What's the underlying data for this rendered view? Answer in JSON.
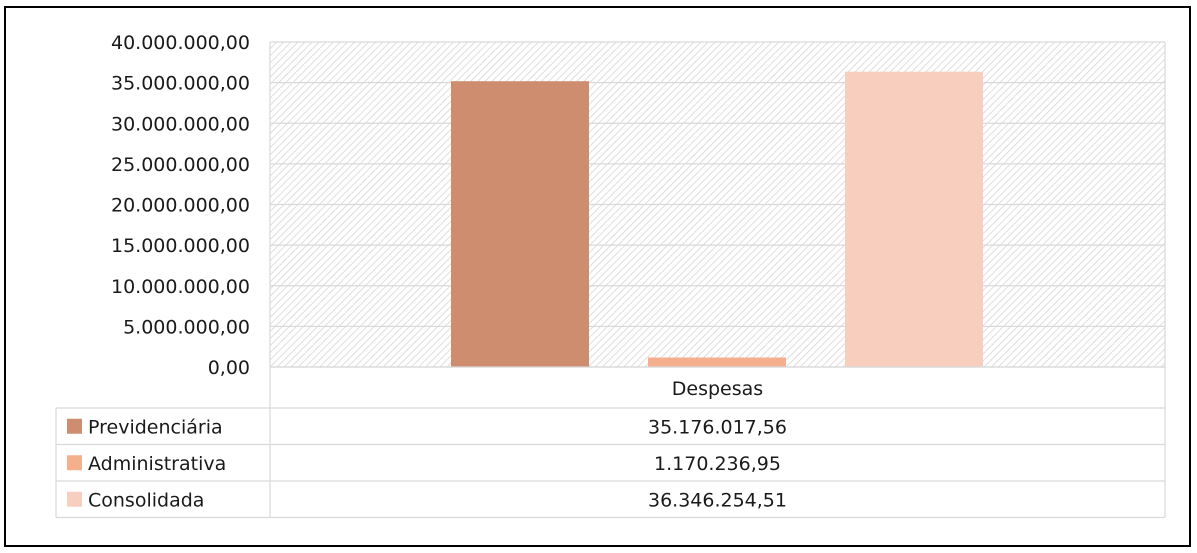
{
  "chart_data": {
    "type": "bar",
    "categories": [
      "Despesas"
    ],
    "series": [
      {
        "name": "Previdenciária",
        "values": [
          35176017.56
        ],
        "color": "#cd8d6e",
        "label": "35.176.017,56"
      },
      {
        "name": "Administrativa",
        "values": [
          1170236.95
        ],
        "color": "#f4b08c",
        "label": "1.170.236,95"
      },
      {
        "name": "Consolidada",
        "values": [
          36346254.51
        ],
        "color": "#f8cfbf",
        "label": "36.346.254,51"
      }
    ],
    "ylim": [
      0,
      40000000
    ],
    "yticks": [
      0,
      5000000,
      10000000,
      15000000,
      20000000,
      25000000,
      30000000,
      35000000,
      40000000
    ],
    "ytick_labels": [
      "0,00",
      "5.000.000,00",
      "10.000.000,00",
      "15.000.000,00",
      "20.000.000,00",
      "25.000.000,00",
      "30.000.000,00",
      "35.000.000,00",
      "40.000.000,00"
    ],
    "grid": true,
    "legend": "data-table"
  }
}
